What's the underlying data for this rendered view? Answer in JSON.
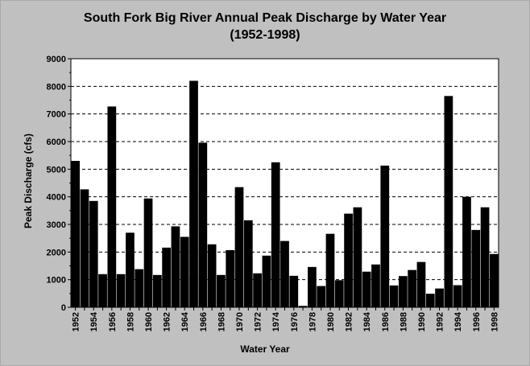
{
  "chart_data": {
    "type": "bar",
    "title": "South Fork Big River Annual Peak Discharge by Water Year",
    "subtitle": "(1952-1998)",
    "xlabel": "Water Year",
    "ylabel": "Peak Discharge (cfs)",
    "ylim": [
      0,
      9000
    ],
    "yticks": [
      0,
      1000,
      2000,
      3000,
      4000,
      5000,
      6000,
      7000,
      8000,
      9000
    ],
    "grid": "horizontal-dashed",
    "bar_color": "#000000",
    "categories": [
      1952,
      1953,
      1954,
      1955,
      1956,
      1957,
      1958,
      1959,
      1960,
      1961,
      1962,
      1963,
      1964,
      1965,
      1966,
      1967,
      1968,
      1969,
      1970,
      1971,
      1972,
      1973,
      1974,
      1975,
      1976,
      1977,
      1978,
      1979,
      1980,
      1981,
      1982,
      1983,
      1984,
      1985,
      1986,
      1987,
      1988,
      1989,
      1990,
      1991,
      1992,
      1993,
      1994,
      1995,
      1996,
      1997,
      1998
    ],
    "xtick_labels": [
      "1952",
      "1954",
      "1956",
      "1958",
      "1960",
      "1962",
      "1964",
      "1966",
      "1968",
      "1970",
      "1972",
      "1974",
      "1976",
      "1978",
      "1980",
      "1982",
      "1984",
      "1986",
      "1988",
      "1990",
      "1992",
      "1994",
      "1996",
      "1998"
    ],
    "values": [
      5300,
      4270,
      3850,
      1200,
      7270,
      1200,
      2700,
      1380,
      3940,
      1170,
      2160,
      2930,
      2550,
      8200,
      5960,
      2280,
      1170,
      2070,
      4350,
      3150,
      1230,
      1870,
      5250,
      2400,
      1140,
      50,
      1460,
      770,
      2660,
      980,
      3390,
      3620,
      1290,
      1550,
      5130,
      790,
      1130,
      1350,
      1640,
      490,
      680,
      7650,
      800,
      4000,
      2800,
      3620,
      1930
    ]
  }
}
